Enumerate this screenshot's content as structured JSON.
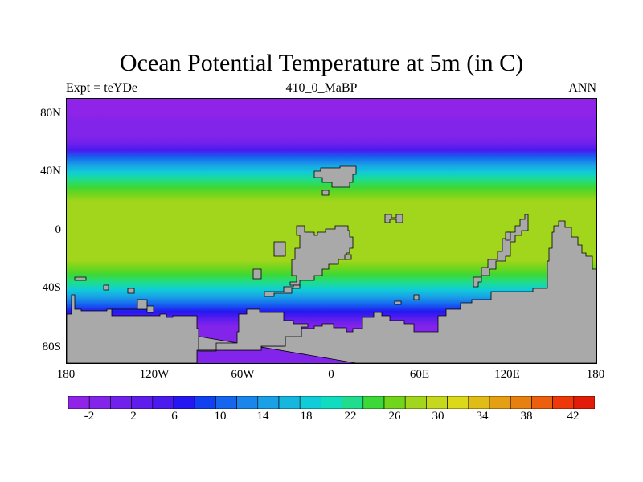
{
  "title": "Ocean Potential Temperature at 5m (in C)",
  "left_label": "Expt = teYDe",
  "center_label": "410_0_MaBP",
  "right_label": "ANN",
  "lat_labels": [
    "80N",
    "40N",
    "0",
    "40S",
    "80S"
  ],
  "lon_labels": [
    "180",
    "120W",
    "60W",
    "0",
    "60E",
    "120E",
    "180"
  ],
  "colorbar": {
    "labels": [
      "-2",
      "2",
      "6",
      "10",
      "14",
      "18",
      "22",
      "26",
      "30",
      "34",
      "38",
      "42"
    ],
    "levels": [
      -4,
      -2,
      0,
      2,
      4,
      6,
      8,
      10,
      12,
      14,
      16,
      18,
      20,
      22,
      24,
      26,
      28,
      30,
      32,
      34,
      36,
      38,
      40,
      42,
      44
    ],
    "colors": [
      "#8f24e8",
      "#8224ea",
      "#7121ec",
      "#5f1ded",
      "#4a1aef",
      "#2417f1",
      "#1040f0",
      "#1565ef",
      "#1a86ec",
      "#1aa0e6",
      "#15b7df",
      "#10ccd8",
      "#10dcc0",
      "#1fdd8c",
      "#3cd838",
      "#71d51c",
      "#a2d61c",
      "#c5d81c",
      "#dcd81a",
      "#dfbd16",
      "#e4a012",
      "#e8800f",
      "#ec5f0c",
      "#ee3809",
      "#e21c08"
    ]
  },
  "land_color": "#a9a9a9",
  "chart_data": {
    "type": "heatmap",
    "title": "Ocean Potential Temperature at 5m (in C)",
    "variable": "potential temperature",
    "units": "C",
    "x_range": [
      -180,
      180
    ],
    "y_range": [
      -90,
      90
    ],
    "zonal_profile": {
      "lat": [
        90,
        85,
        80,
        75,
        70,
        65,
        60,
        55,
        50,
        45,
        40,
        35,
        30,
        25,
        20,
        15,
        10,
        5,
        0,
        -5,
        -10,
        -15,
        -20,
        -25,
        -30,
        -35,
        -40,
        -45,
        -50,
        -55,
        -60,
        -65,
        -70,
        -75,
        -80,
        -85,
        -90
      ],
      "temp": [
        -2.5,
        -2.5,
        -2.3,
        -2.0,
        -1.5,
        -0.5,
        1.5,
        5,
        10,
        15,
        19,
        22,
        25,
        27,
        28.5,
        29,
        29.5,
        29,
        28.5,
        29,
        29.5,
        29,
        28,
        27,
        25,
        22,
        18,
        14,
        10,
        6,
        2,
        -1,
        -2,
        -2,
        -2,
        -2,
        -2
      ]
    }
  }
}
